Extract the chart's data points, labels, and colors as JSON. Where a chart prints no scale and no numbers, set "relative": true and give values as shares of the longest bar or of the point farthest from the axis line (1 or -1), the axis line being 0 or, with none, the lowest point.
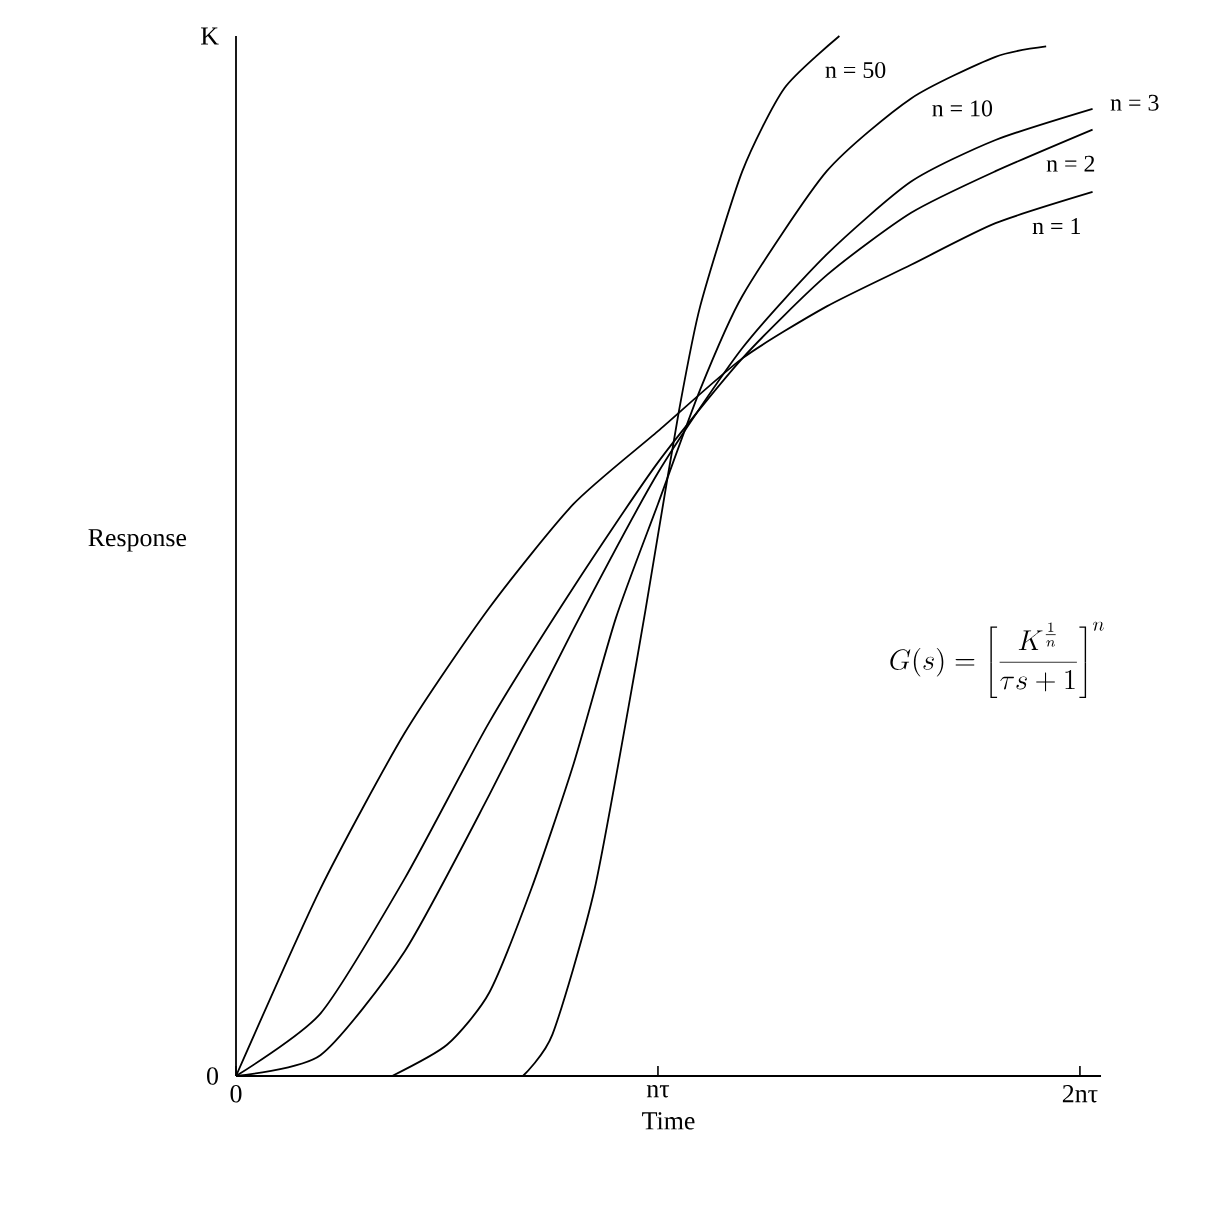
{
  "chart_data": {
    "type": "line",
    "xlabel": "Time",
    "ylabel": "Response",
    "relative": true,
    "xlim": [
      0,
      2.05
    ],
    "xticks": [
      {
        "value": 0,
        "label": "0"
      },
      {
        "value": 1,
        "label": "nτ"
      },
      {
        "value": 2,
        "label": "2nτ"
      }
    ],
    "grid": false,
    "legend": false,
    "annotations": [
      "G(s) = \\left[\\frac{K^{\\frac{1}{n}}}{\\tau s + 1}\\right]^{n}",
      "K",
      "0"
    ],
    "series": [
      {
        "name": "n = 50",
        "color": "#000000",
        "x": [
          0.68,
          0.75,
          0.85,
          0.95,
          1.0,
          1.05,
          1.1,
          1.2,
          1.3,
          1.43
        ],
        "values": [
          0,
          0.04,
          0.18,
          0.4,
          0.52,
          0.64,
          0.74,
          0.87,
          0.95,
          1.0
        ]
      },
      {
        "name": "n = 10",
        "color": "#000000",
        "x": [
          0.37,
          0.5,
          0.6,
          0.7,
          0.8,
          0.9,
          1.0,
          1.1,
          1.2,
          1.4,
          1.6,
          1.8,
          1.92
        ],
        "values": [
          0,
          0.03,
          0.08,
          0.18,
          0.3,
          0.44,
          0.55,
          0.66,
          0.75,
          0.87,
          0.94,
          0.98,
          0.99
        ]
      },
      {
        "name": "n = 3",
        "color": "#000000",
        "x": [
          0,
          0.2,
          0.4,
          0.6,
          0.8,
          1.0,
          1.2,
          1.4,
          1.6,
          1.8,
          2.03
        ],
        "values": [
          0,
          0.02,
          0.12,
          0.27,
          0.43,
          0.58,
          0.7,
          0.79,
          0.86,
          0.9,
          0.93
        ]
      },
      {
        "name": "n = 2",
        "color": "#000000",
        "x": [
          0,
          0.2,
          0.4,
          0.6,
          0.8,
          1.0,
          1.2,
          1.4,
          1.6,
          1.8,
          2.03
        ],
        "values": [
          0,
          0.06,
          0.19,
          0.34,
          0.47,
          0.59,
          0.69,
          0.77,
          0.83,
          0.87,
          0.91
        ]
      },
      {
        "name": "n = 1",
        "color": "#000000",
        "x": [
          0,
          0.2,
          0.4,
          0.6,
          0.8,
          1.0,
          1.2,
          1.4,
          1.6,
          1.8,
          2.03
        ],
        "values": [
          0,
          0.18,
          0.33,
          0.45,
          0.55,
          0.62,
          0.69,
          0.74,
          0.78,
          0.82,
          0.85
        ]
      }
    ]
  }
}
